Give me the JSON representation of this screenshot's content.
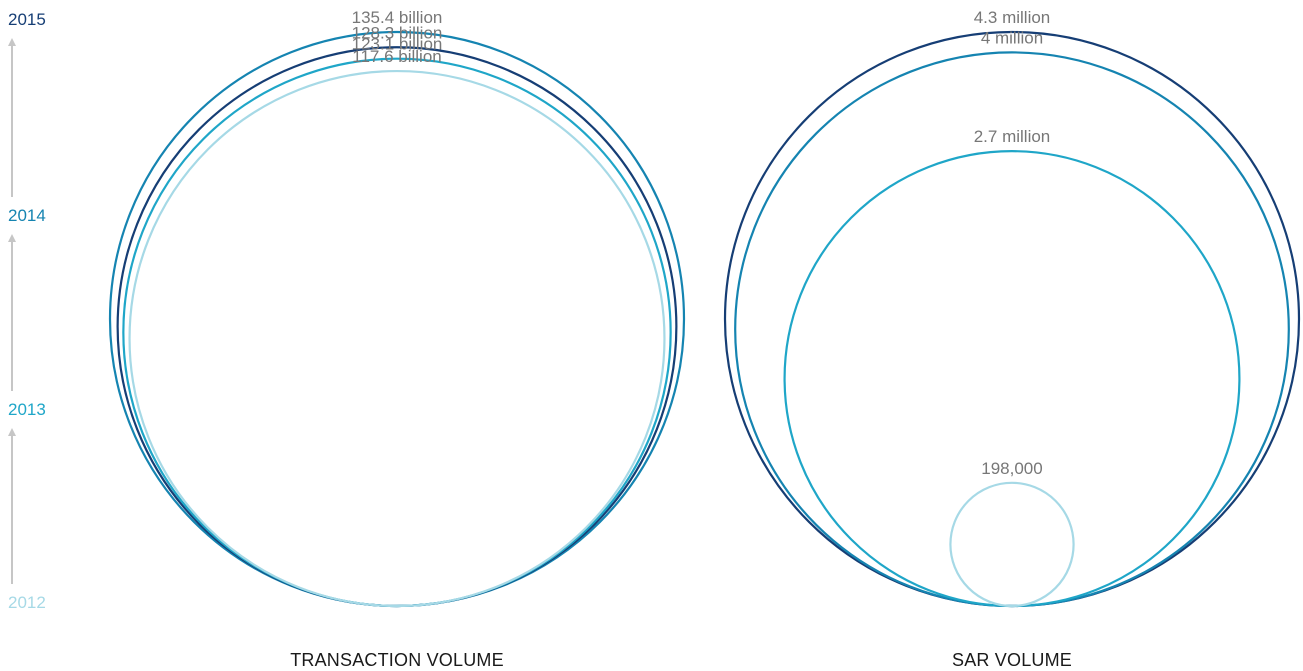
{
  "colors": {
    "2012": "#a6d9e6",
    "2013": "#1fa6c8",
    "2014": "#1584b1",
    "2015": "#163e75",
    "timeline_arrow": "#c6c6c6",
    "value_text": "#777777",
    "title_text": "#1a1a1a"
  },
  "timeline": {
    "years": [
      {
        "year": "2015",
        "color": "#163e75"
      },
      {
        "year": "2014",
        "color": "#1584b1"
      },
      {
        "year": "2013",
        "color": "#1fa6c8"
      },
      {
        "year": "2012",
        "color": "#a6d9e6"
      }
    ]
  },
  "chart_data": [
    {
      "type": "nested-circles",
      "title": "TRANSACTION VOLUME",
      "series": [
        {
          "year": "2015",
          "label": "128.3 billion",
          "value": 128.3
        },
        {
          "year": "2014",
          "label": "135.4 billion",
          "value": 135.4
        },
        {
          "year": "2013",
          "label": "123.1 billion",
          "value": 123.1
        },
        {
          "year": "2012",
          "label": "117.6 billion",
          "value": 117.6
        }
      ]
    },
    {
      "type": "nested-circles",
      "title": "SAR VOLUME",
      "series": [
        {
          "year": "2015",
          "label": "4.3 million",
          "value": 4300000
        },
        {
          "year": "2014",
          "label": "4 million",
          "value": 4000000
        },
        {
          "year": "2013",
          "label": "2.7 million",
          "value": 2700000
        },
        {
          "year": "2012",
          "label": "198,000",
          "value": 198000
        }
      ]
    }
  ]
}
